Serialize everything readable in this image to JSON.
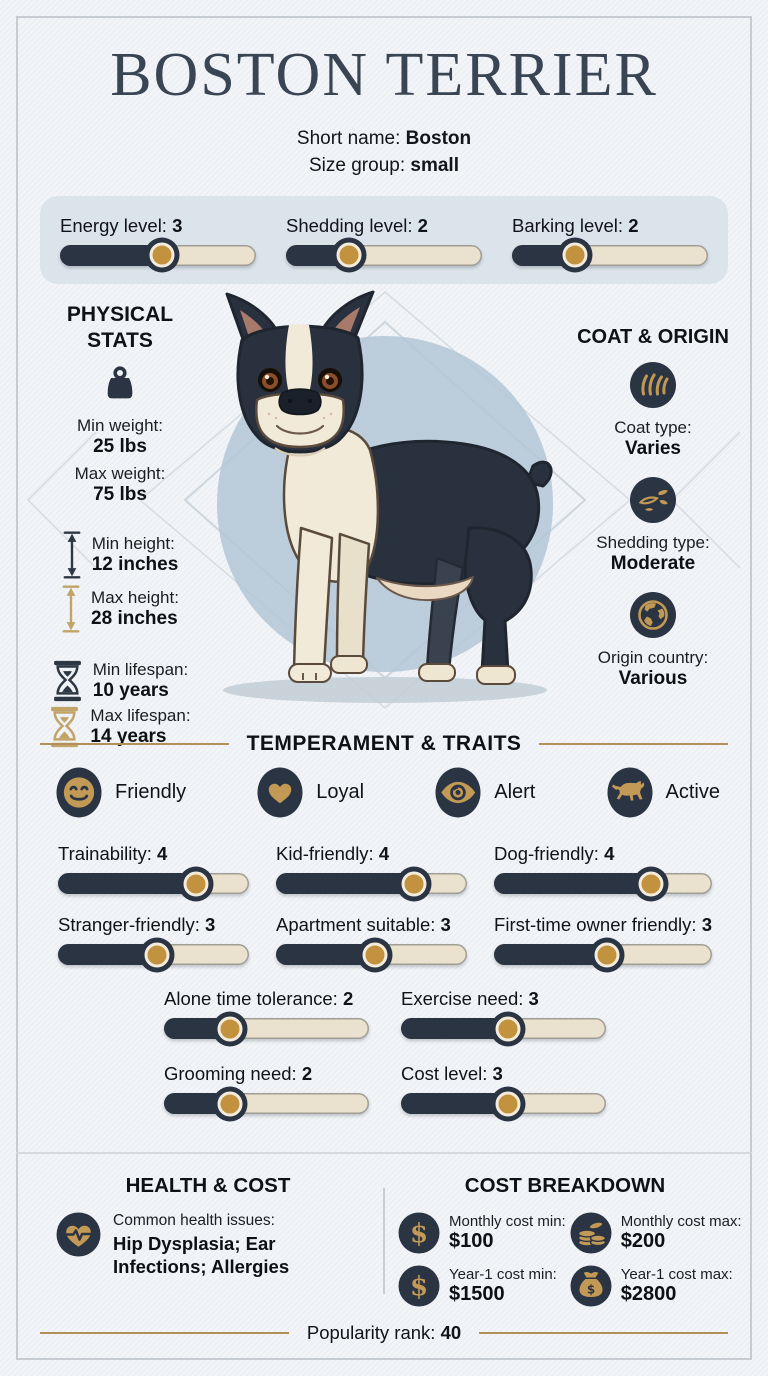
{
  "colors": {
    "accent_gold": "#b29057",
    "icon_gold": "#c09a55",
    "dark_navy": "#2b3443",
    "knob_gold": "#c3923f",
    "track_cream": "#eae2cf",
    "panel_blue": "#dce4eb",
    "circle_blue": "#b3c5d6",
    "title": "#3a4554"
  },
  "header": {
    "title": "BOSTON TERRIER",
    "short_name_label": "Short name:",
    "short_name": "Boston",
    "size_group_label": "Size group:",
    "size_group": "small"
  },
  "top_sliders": [
    {
      "label": "Energy level:",
      "value": 3,
      "max": 5
    },
    {
      "label": "Shedding level:",
      "value": 2,
      "max": 5
    },
    {
      "label": "Barking level:",
      "value": 2,
      "max": 5
    }
  ],
  "physical_stats": {
    "heading": "PHYSICAL STATS",
    "weight": {
      "icon": "weight-icon",
      "rows": [
        {
          "label": "Min weight:",
          "value": "25 lbs"
        },
        {
          "label": "Max weight:",
          "value": "75 lbs"
        }
      ]
    },
    "rows": [
      {
        "icon": "height-min-icon",
        "label": "Min height:",
        "value": "12 inches",
        "group": "height"
      },
      {
        "icon": "height-max-icon",
        "label": "Max height:",
        "value": "28 inches",
        "group": "height"
      },
      {
        "icon": "lifespan-min-icon",
        "label": "Min lifespan:",
        "value": "10 years",
        "group": "lifespan"
      },
      {
        "icon": "lifespan-max-icon",
        "label": "Max lifespan:",
        "value": "14 years",
        "group": "lifespan"
      }
    ]
  },
  "coat_origin": {
    "heading": "COAT & ORIGIN",
    "items": [
      {
        "icon": "coat-icon",
        "label": "Coat type:",
        "value": "Varies"
      },
      {
        "icon": "shedding-icon",
        "label": "Shedding type:",
        "value": "Moderate"
      },
      {
        "icon": "globe-icon",
        "label": "Origin country:",
        "value": "Various"
      }
    ]
  },
  "illustration": {
    "subject": "Boston Terrier dog standing, black and cream coat, blue circle backdrop"
  },
  "temperament": {
    "heading": "TEMPERAMENT & TRAITS",
    "traits": [
      {
        "icon": "smiley-icon",
        "label": "Friendly"
      },
      {
        "icon": "heart-icon",
        "label": "Loyal"
      },
      {
        "icon": "eye-icon",
        "label": "Alert"
      },
      {
        "icon": "running-dog-icon",
        "label": "Active"
      }
    ],
    "sliders": [
      {
        "label": "Trainability:",
        "value": 4,
        "max": 5
      },
      {
        "label": "Kid-friendly:",
        "value": 4,
        "max": 5
      },
      {
        "label": "Dog-friendly:",
        "value": 4,
        "max": 5
      },
      {
        "label": "Stranger-friendly:",
        "value": 3,
        "max": 5
      },
      {
        "label": "Apartment suitable:",
        "value": 3,
        "max": 5
      },
      {
        "label": "First-time owner friendly:",
        "value": 3,
        "max": 5
      }
    ],
    "care_sliders": [
      {
        "label": "Alone time tolerance:",
        "value": 2,
        "max": 5
      },
      {
        "label": "Exercise need:",
        "value": 3,
        "max": 5
      },
      {
        "label": "Grooming need:",
        "value": 2,
        "max": 5
      },
      {
        "label": "Cost level:",
        "value": 3,
        "max": 5
      }
    ]
  },
  "health": {
    "heading": "HEALTH & COST",
    "icon": "heart-pulse-icon",
    "issues_label": "Common health issues:",
    "issues_value": "Hip Dysplasia; Ear Infections; Allergies"
  },
  "cost": {
    "heading": "COST BREAKDOWN",
    "items": [
      {
        "icon": "dollar-icon",
        "label": "Monthly cost min:",
        "value": "$100"
      },
      {
        "icon": "coins-icon",
        "label": "Monthly cost max:",
        "value": "$200"
      },
      {
        "icon": "dollar-icon",
        "label": "Year-1 cost min:",
        "value": "$1500"
      },
      {
        "icon": "moneybag-icon",
        "label": "Year-1 cost max:",
        "value": "$2800"
      }
    ]
  },
  "popularity": {
    "label": "Popularity rank:",
    "value": "40"
  }
}
